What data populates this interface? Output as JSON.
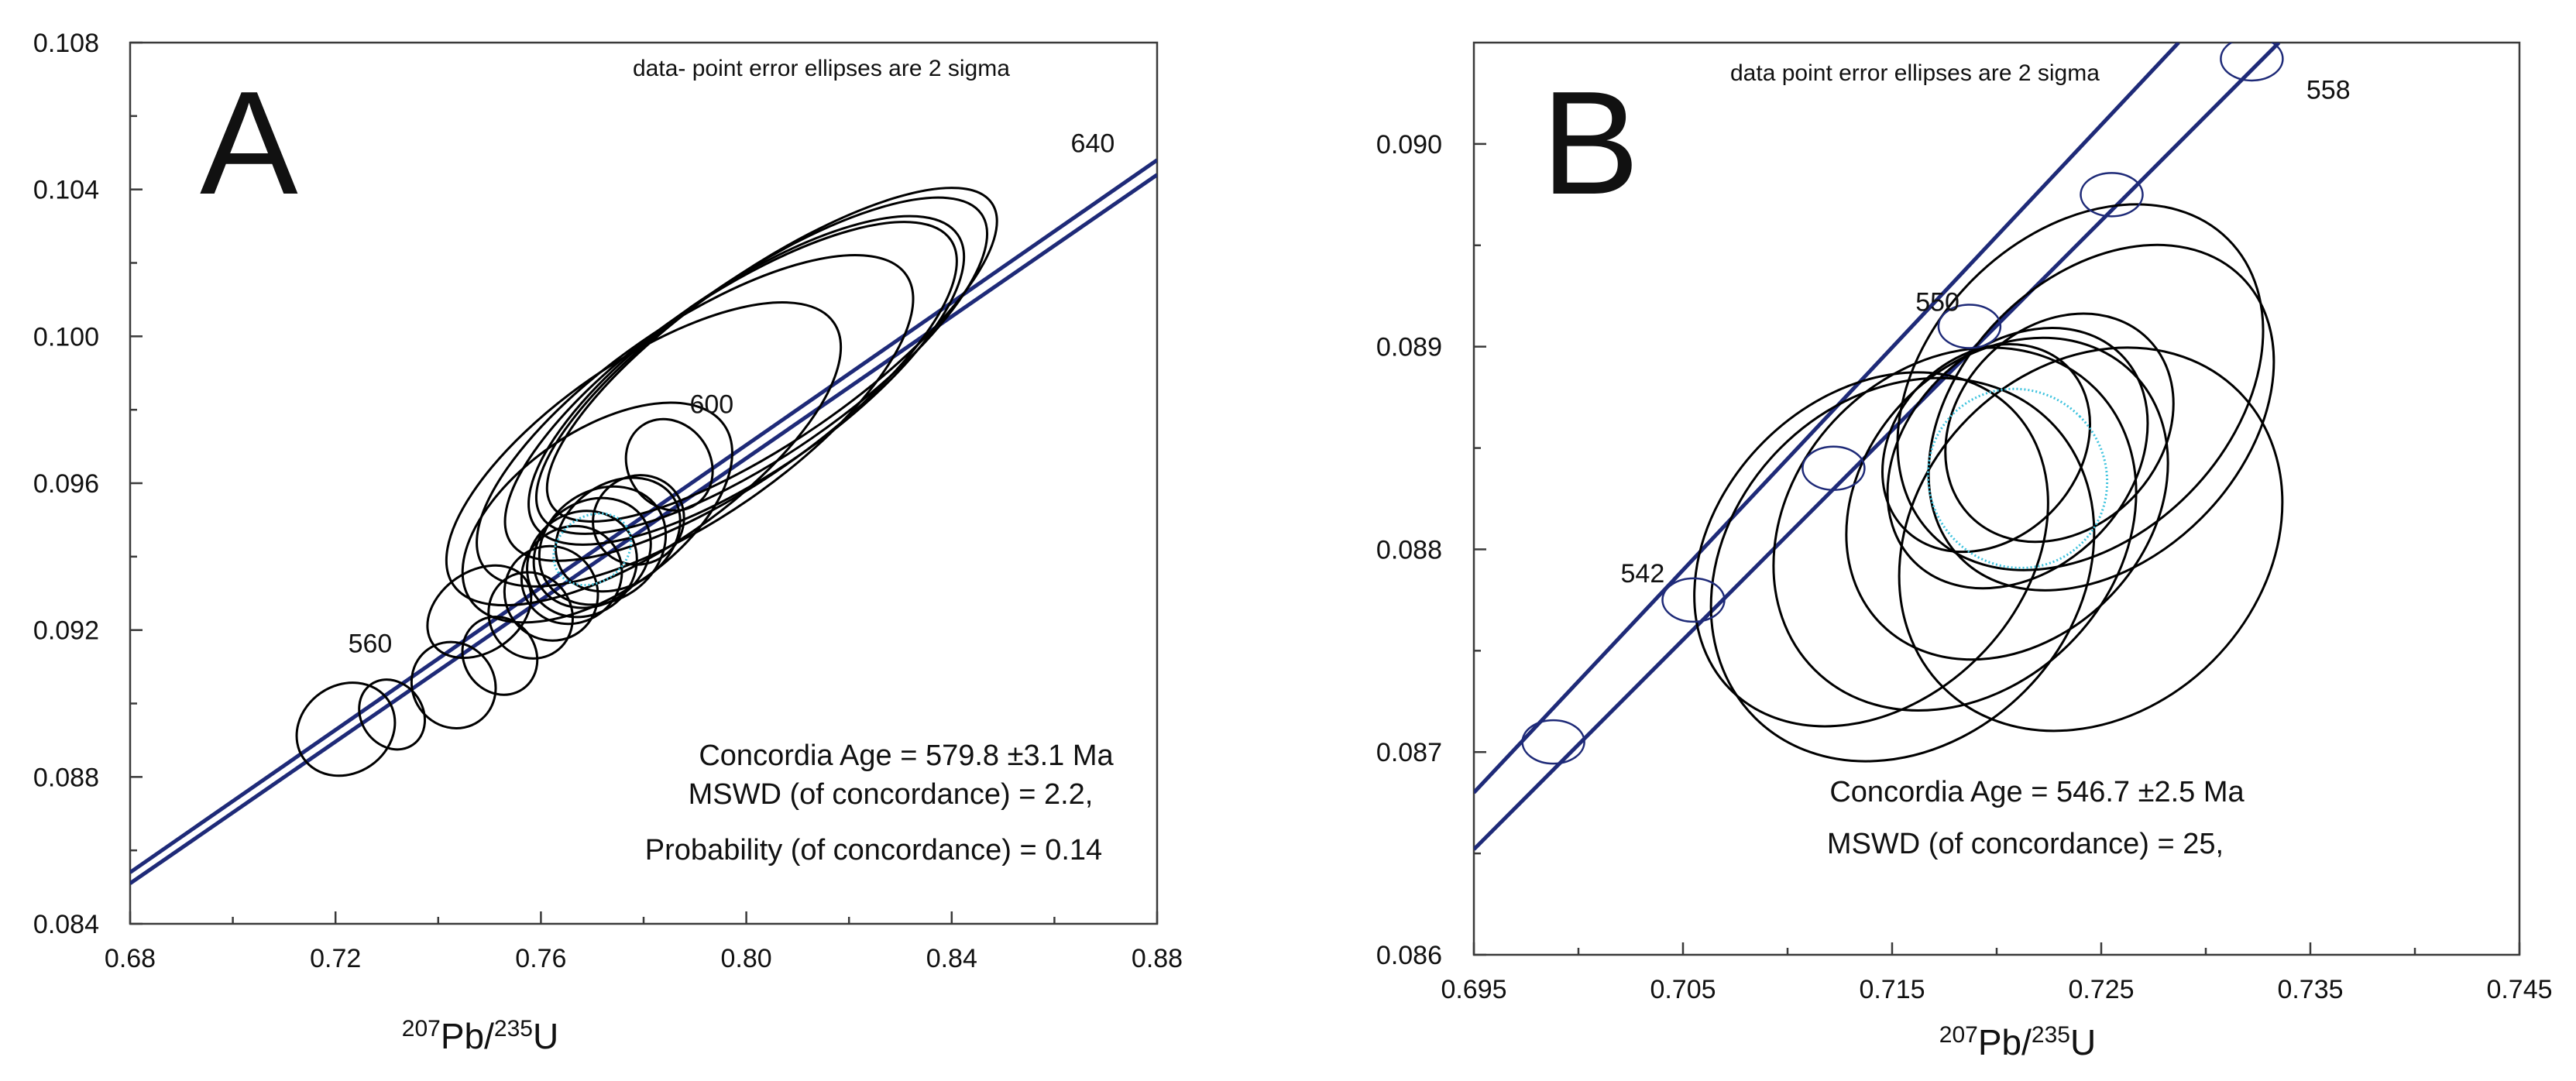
{
  "chart_data": [
    {
      "panel": "A",
      "type": "scatter",
      "subtype": "concordia diagram with 2-sigma error ellipses",
      "note": "data- point error ellipses are 2 sigma",
      "xlabel": {
        "pre": "207",
        "mid": "Pb/",
        "sup2": "235",
        "post": "U"
      },
      "xlim": [
        0.68,
        0.88
      ],
      "ylim": [
        0.084,
        0.108
      ],
      "xticks": [
        "0.68",
        "0.72",
        "0.76",
        "0.80",
        "0.84",
        "0.88"
      ],
      "yticks": [
        "0.084",
        "0.088",
        "0.092",
        "0.096",
        "0.100",
        "0.104",
        "0.108"
      ],
      "age_labels": [
        {
          "text": "560",
          "x": 0.727,
          "y": 0.0915
        },
        {
          "text": "600",
          "x": 0.795,
          "y": 0.0977
        },
        {
          "text": "640",
          "x": 0.865,
          "y": 0.1048
        }
      ],
      "stats": [
        "Concordia Age = 579.8 ±3.1 Ma",
        "MSWD (of concordance) = 2.2,",
        "Probability (of concordance) = 0.14"
      ],
      "concordia_lines": [
        {
          "x": [
            0.68,
            0.88
          ],
          "y": [
            0.0851,
            0.1044
          ]
        },
        {
          "x": [
            0.68,
            0.88
          ],
          "y": [
            0.0854,
            0.1048
          ]
        }
      ],
      "mean_ellipse": {
        "cx": 0.77,
        "cy": 0.0942,
        "sx": 0.008,
        "sy": 0.0009
      },
      "ellipses": [
        {
          "cx": 0.722,
          "cy": 0.0893,
          "sx": 0.01,
          "sy": 0.0012
        },
        {
          "cx": 0.731,
          "cy": 0.0897,
          "sx": 0.006,
          "sy": 0.001
        },
        {
          "cx": 0.743,
          "cy": 0.0905,
          "sx": 0.008,
          "sy": 0.0012
        },
        {
          "cx": 0.752,
          "cy": 0.0913,
          "sx": 0.007,
          "sy": 0.0011
        },
        {
          "cx": 0.758,
          "cy": 0.0924,
          "sx": 0.008,
          "sy": 0.0012
        },
        {
          "cx": 0.762,
          "cy": 0.093,
          "sx": 0.009,
          "sy": 0.0013
        },
        {
          "cx": 0.766,
          "cy": 0.0935,
          "sx": 0.01,
          "sy": 0.0013
        },
        {
          "cx": 0.768,
          "cy": 0.0938,
          "sx": 0.011,
          "sy": 0.0014
        },
        {
          "cx": 0.77,
          "cy": 0.0941,
          "sx": 0.012,
          "sy": 0.0014
        },
        {
          "cx": 0.772,
          "cy": 0.0943,
          "sx": 0.013,
          "sy": 0.0015
        },
        {
          "cx": 0.775,
          "cy": 0.0946,
          "sx": 0.013,
          "sy": 0.0014
        },
        {
          "cx": 0.779,
          "cy": 0.095,
          "sx": 0.009,
          "sy": 0.0012
        },
        {
          "cx": 0.771,
          "cy": 0.0952,
          "sx": 0.03,
          "sy": 0.0022
        },
        {
          "cx": 0.78,
          "cy": 0.0968,
          "sx": 0.045,
          "sy": 0.0025
        },
        {
          "cx": 0.79,
          "cy": 0.0977,
          "sx": 0.05,
          "sy": 0.0026
        },
        {
          "cx": 0.797,
          "cy": 0.0985,
          "sx": 0.052,
          "sy": 0.0025
        },
        {
          "cx": 0.8,
          "cy": 0.0988,
          "sx": 0.05,
          "sy": 0.0025
        },
        {
          "cx": 0.803,
          "cy": 0.0992,
          "sx": 0.052,
          "sy": 0.0024
        },
        {
          "cx": 0.805,
          "cy": 0.0995,
          "sx": 0.052,
          "sy": 0.0023
        },
        {
          "cx": 0.785,
          "cy": 0.0965,
          "sx": 0.008,
          "sy": 0.0013
        },
        {
          "cx": 0.748,
          "cy": 0.0925,
          "sx": 0.011,
          "sy": 0.0011
        }
      ]
    },
    {
      "panel": "B",
      "type": "scatter",
      "subtype": "concordia diagram with 2-sigma error ellipses",
      "note": "data point error ellipses are 2 sigma",
      "xlabel": {
        "pre": "207",
        "mid": "Pb/",
        "sup2": "235",
        "post": "U"
      },
      "xlim": [
        0.695,
        0.745
      ],
      "ylim": [
        0.086,
        0.0905
      ],
      "xticks": [
        "0.695",
        "0.705",
        "0.715",
        "0.725",
        "0.735",
        "0.745"
      ],
      "yticks": [
        "0.086",
        "0.087",
        "0.088",
        "0.089",
        "0.090"
      ],
      "age_labels": [
        {
          "text": "542",
          "x": 0.7035,
          "y": 0.0878
        },
        {
          "text": "550",
          "x": 0.7176,
          "y": 0.0891
        },
        {
          "text": "558",
          "x": 0.7337,
          "y": 0.0903
        }
      ],
      "stats": [
        "Concordia Age = 546.7 ±2.5 Ma",
        "MSWD (of concordance) = 25,"
      ],
      "concordia_lines": [
        {
          "x": [
            0.695,
            0.7335
          ],
          "y": [
            0.08652,
            0.0905
          ]
        },
        {
          "x": [
            0.695,
            0.7287
          ],
          "y": [
            0.0868,
            0.0905
          ]
        }
      ],
      "age_markers": [
        {
          "x": 0.6988,
          "y": 0.08705
        },
        {
          "x": 0.7055,
          "y": 0.08775
        },
        {
          "x": 0.7122,
          "y": 0.0884
        },
        {
          "x": 0.7187,
          "y": 0.0891
        },
        {
          "x": 0.7255,
          "y": 0.08975
        },
        {
          "x": 0.7322,
          "y": 0.09042
        }
      ],
      "mean_ellipse": {
        "cx": 0.721,
        "cy": 0.08835,
        "sx": 0.0042,
        "sy": 0.00045
      },
      "ellipses": [
        {
          "cx": 0.714,
          "cy": 0.088,
          "sx": 0.0095,
          "sy": 0.00075
        },
        {
          "cx": 0.7155,
          "cy": 0.0879,
          "sx": 0.01,
          "sy": 0.00085
        },
        {
          "cx": 0.718,
          "cy": 0.0881,
          "sx": 0.0095,
          "sy": 0.0008
        },
        {
          "cx": 0.7205,
          "cy": 0.08825,
          "sx": 0.0085,
          "sy": 0.0007
        },
        {
          "cx": 0.721,
          "cy": 0.08845,
          "sx": 0.007,
          "sy": 0.00055
        },
        {
          "cx": 0.723,
          "cy": 0.0886,
          "sx": 0.006,
          "sy": 0.0005
        },
        {
          "cx": 0.725,
          "cy": 0.08865,
          "sx": 0.0095,
          "sy": 0.0007
        },
        {
          "cx": 0.724,
          "cy": 0.0888,
          "sx": 0.01,
          "sy": 0.00075
        },
        {
          "cx": 0.7245,
          "cy": 0.08805,
          "sx": 0.01,
          "sy": 0.00085
        },
        {
          "cx": 0.7195,
          "cy": 0.0885,
          "sx": 0.0055,
          "sy": 0.00045
        }
      ]
    }
  ]
}
